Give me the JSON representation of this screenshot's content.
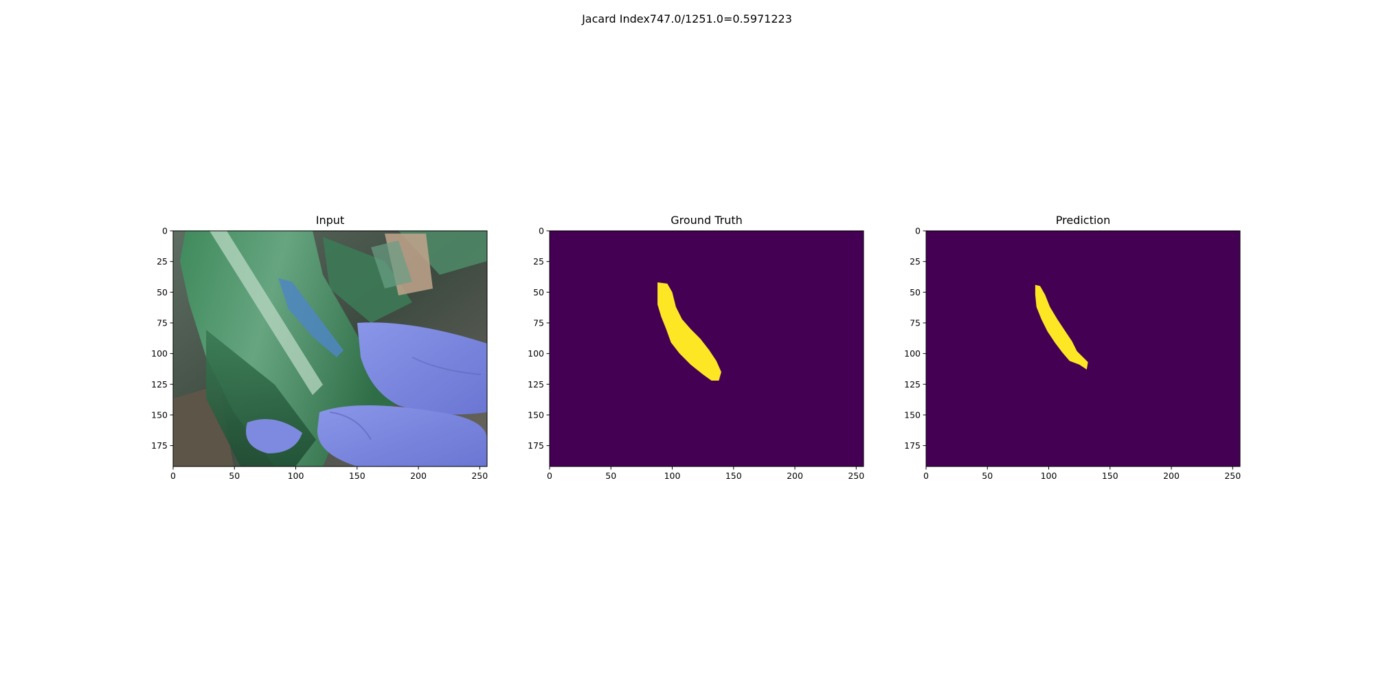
{
  "figure": {
    "suptitle": "Jacard Index747.0/1251.0=0.5971223"
  },
  "chart_data": [
    {
      "type": "image",
      "title": "Input",
      "xlim": [
        0,
        256
      ],
      "ylim": [
        192,
        0
      ],
      "xticks": [
        0,
        50,
        100,
        150,
        200,
        250
      ],
      "yticks": [
        0,
        25,
        50,
        75,
        100,
        125,
        150,
        175
      ],
      "content": "rgb photo"
    },
    {
      "type": "heatmap",
      "title": "Ground Truth",
      "xlim": [
        0,
        256
      ],
      "ylim": [
        192,
        0
      ],
      "xticks": [
        0,
        50,
        100,
        150,
        200,
        250
      ],
      "yticks": [
        0,
        25,
        50,
        75,
        100,
        125,
        150,
        175
      ],
      "colors": {
        "background": "#440154",
        "mask": "#fde725"
      },
      "mask_outline": [
        [
          88,
          42
        ],
        [
          96,
          43
        ],
        [
          100,
          50
        ],
        [
          103,
          62
        ],
        [
          108,
          72
        ],
        [
          115,
          80
        ],
        [
          123,
          88
        ],
        [
          130,
          97
        ],
        [
          136,
          106
        ],
        [
          140,
          115
        ],
        [
          138,
          122
        ],
        [
          132,
          122
        ],
        [
          125,
          117
        ],
        [
          115,
          109
        ],
        [
          106,
          100
        ],
        [
          99,
          91
        ],
        [
          95,
          80
        ],
        [
          91,
          70
        ],
        [
          88,
          60
        ],
        [
          88,
          50
        ]
      ]
    },
    {
      "type": "heatmap",
      "title": "Prediction",
      "xlim": [
        0,
        256
      ],
      "ylim": [
        192,
        0
      ],
      "xticks": [
        0,
        50,
        100,
        150,
        200,
        250
      ],
      "yticks": [
        0,
        25,
        50,
        75,
        100,
        125,
        150,
        175
      ],
      "colors": {
        "background": "#440154",
        "mask": "#fde725"
      },
      "mask_outline": [
        [
          89,
          44
        ],
        [
          93,
          45
        ],
        [
          97,
          52
        ],
        [
          101,
          62
        ],
        [
          107,
          72
        ],
        [
          113,
          81
        ],
        [
          119,
          90
        ],
        [
          123,
          98
        ],
        [
          128,
          103
        ],
        [
          132,
          107
        ],
        [
          131,
          113
        ],
        [
          125,
          109
        ],
        [
          117,
          106
        ],
        [
          111,
          99
        ],
        [
          105,
          91
        ],
        [
          99,
          82
        ],
        [
          94,
          72
        ],
        [
          90,
          62
        ],
        [
          89,
          52
        ]
      ]
    }
  ]
}
